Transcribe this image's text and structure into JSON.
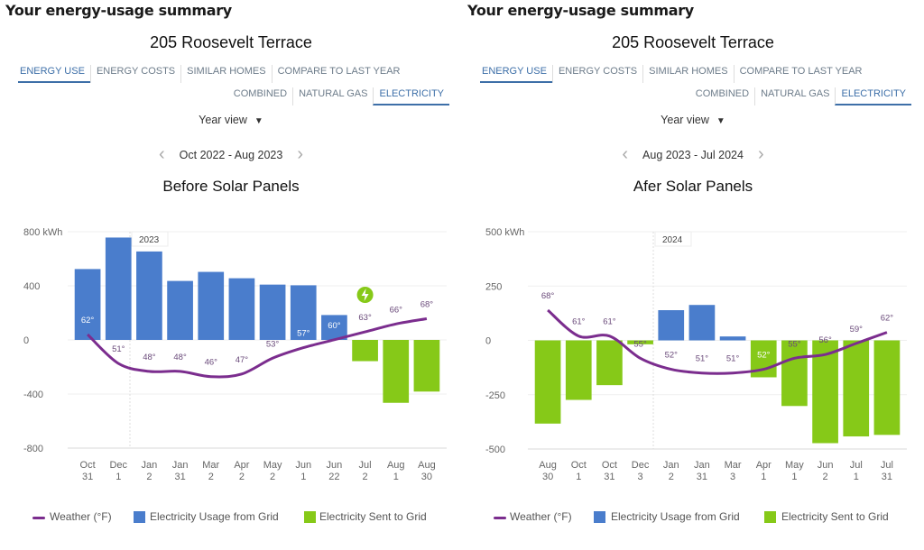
{
  "panels": [
    {
      "header": "Your energy-usage summary",
      "address": "205 Roosevelt Terrace",
      "tabs": [
        "ENERGY USE",
        "ENERGY COSTS",
        "SIMILAR HOMES",
        "COMPARE TO LAST YEAR"
      ],
      "active_tab": 0,
      "subtabs": [
        "COMBINED",
        "NATURAL GAS",
        "ELECTRICITY"
      ],
      "active_subtab": 2,
      "view": "Year view",
      "range": "Oct 2022 - Aug 2023",
      "legend": [
        "Weather (°F)",
        "Electricity Usage from Grid",
        "Electricity Sent to Grid"
      ]
    },
    {
      "header": "Your energy-usage summary",
      "address": "205 Roosevelt Terrace",
      "tabs": [
        "ENERGY USE",
        "ENERGY COSTS",
        "SIMILAR HOMES",
        "COMPARE TO LAST YEAR"
      ],
      "active_tab": 0,
      "subtabs": [
        "COMBINED",
        "NATURAL GAS",
        "ELECTRICITY"
      ],
      "active_subtab": 2,
      "view": "Year view",
      "range": "Aug 2023 - Jul 2024",
      "legend": [
        "Weather (°F)",
        "Electricity Usage from Grid",
        "Electricity Sent to Grid"
      ]
    }
  ],
  "colors": {
    "usage": "#4a7dcc",
    "sent": "#86c918",
    "weather": "#7b2d8e"
  },
  "chart_data": [
    {
      "type": "bar",
      "title": "Before Solar Panels",
      "ylabel_unit": "kWh",
      "ylim": [
        -800,
        800
      ],
      "yticks": [
        "800 kWh",
        "400",
        "0",
        "-400",
        "-800"
      ],
      "year_marker": "2023",
      "categories": [
        [
          "Oct",
          "31"
        ],
        [
          "Dec",
          "1"
        ],
        [
          "Jan",
          "2"
        ],
        [
          "Jan",
          "31"
        ],
        [
          "Mar",
          "2"
        ],
        [
          "Apr",
          "2"
        ],
        [
          "May",
          "2"
        ],
        [
          "Jun",
          "1"
        ],
        [
          "Jun",
          "22"
        ],
        [
          "Jul",
          "2"
        ],
        [
          "Aug",
          "1"
        ],
        [
          "Aug",
          "30"
        ]
      ],
      "values": [
        524,
        757,
        654,
        436,
        503,
        456,
        409,
        404,
        184,
        -157,
        -465,
        -382
      ],
      "weather_f": [
        62,
        51,
        48,
        48,
        46,
        47,
        53,
        57,
        60,
        63,
        66,
        68
      ],
      "weather_labels": [
        "62°",
        "51°",
        "48°",
        "48°",
        "46°",
        "47°",
        "53°",
        "57°",
        "60°",
        "63°",
        "66°",
        "68°"
      ],
      "marker_icon": "lightning-bolt-icon"
    },
    {
      "type": "bar",
      "title": "Afer Solar Panels",
      "ylabel_unit": "kWh",
      "ylim": [
        -500,
        500
      ],
      "yticks": [
        "500 kWh",
        "250",
        "0",
        "-250",
        "-500"
      ],
      "year_marker": "2024",
      "categories": [
        [
          "Aug",
          "30"
        ],
        [
          "Oct",
          "1"
        ],
        [
          "Oct",
          "31"
        ],
        [
          "Dec",
          "3"
        ],
        [
          "Jan",
          "2"
        ],
        [
          "Jan",
          "31"
        ],
        [
          "Mar",
          "3"
        ],
        [
          "Apr",
          "1"
        ],
        [
          "May",
          "1"
        ],
        [
          "Jun",
          "2"
        ],
        [
          "Jul",
          "1"
        ],
        [
          "Jul",
          "31"
        ]
      ],
      "values": [
        -383,
        -274,
        -206,
        -18,
        139,
        163,
        18,
        -170,
        -302,
        -473,
        -442,
        -435
      ],
      "weather_f": [
        68,
        61,
        61,
        55,
        52,
        51,
        51,
        52,
        55,
        56,
        59,
        62
      ],
      "weather_labels": [
        "68°",
        "61°",
        "61°",
        "55°",
        "52°",
        "51°",
        "51°",
        "52°",
        "55°",
        "56°",
        "59°",
        "62°"
      ]
    }
  ]
}
